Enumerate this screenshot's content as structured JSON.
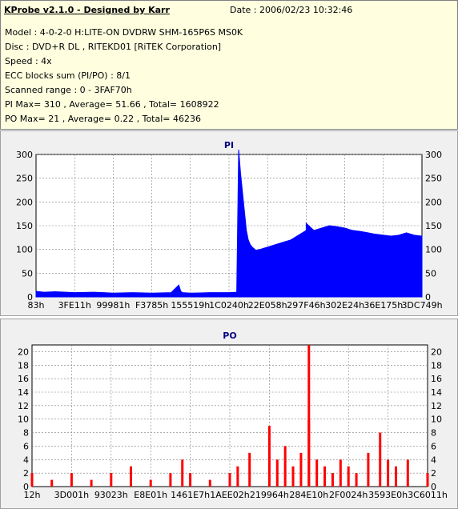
{
  "info": {
    "app_title": "KProbe v2.1.0 - Designed by Karr",
    "date": "Date : 2006/02/23 10:32:46",
    "lines": [
      "Model : 4-0-2-0 H:LITE-ON DVDRW SHM-165P6S MS0K",
      "Disc : DVD+R DL , RITEKD01 [RiTEK Corporation]",
      "Speed : 4x",
      "ECC blocks sum (PI/PO) : 8/1",
      "Scanned range : 0 - 3FAF70h",
      "PI Max= 310 , Average= 51.66 , Total= 1608922",
      "PO Max= 21 , Average= 0.22 , Total= 46236"
    ]
  },
  "colors": {
    "pi_fill": "#0000ff",
    "po_fill": "#ff0000",
    "plot_bg": "#ffffff",
    "grid": "#7f7f7f",
    "title": "#000080"
  },
  "chart_data": [
    {
      "type": "area",
      "title": "PI",
      "ylim": [
        0,
        300
      ],
      "yticks": [
        0,
        50,
        100,
        150,
        200,
        250,
        300
      ],
      "xtick_labels": [
        "83h",
        "3FE11h",
        "99981h",
        "F3785h",
        "155519h",
        "1C0240h",
        "22E058h",
        "297F46h",
        "302E24h",
        "36E175h",
        "3DC749h"
      ],
      "grid": true,
      "series": [
        {
          "x": [
            0.0,
            0.02,
            0.05,
            0.1,
            0.15,
            0.2,
            0.25,
            0.3,
            0.35,
            0.37,
            0.375,
            0.38,
            0.4,
            0.45,
            0.5,
            0.52,
            0.525,
            0.53,
            0.535,
            0.54,
            0.545,
            0.55,
            0.555,
            0.56,
            0.57,
            0.58,
            0.6,
            0.62,
            0.64,
            0.66,
            0.68,
            0.7,
            0.7,
            0.72,
            0.74,
            0.76,
            0.78,
            0.8,
            0.82,
            0.84,
            0.86,
            0.88,
            0.9,
            0.92,
            0.94,
            0.96,
            0.98,
            1.0
          ],
          "values": [
            12,
            10,
            11,
            9,
            10,
            8,
            9,
            8,
            9,
            25,
            12,
            9,
            8,
            9,
            9,
            10,
            310,
            260,
            220,
            180,
            140,
            120,
            110,
            105,
            98,
            100,
            105,
            110,
            115,
            120,
            130,
            140,
            155,
            140,
            145,
            150,
            148,
            145,
            140,
            138,
            135,
            132,
            130,
            128,
            130,
            135,
            130,
            128
          ]
        }
      ]
    },
    {
      "type": "bar",
      "title": "PO",
      "ylim": [
        0,
        21
      ],
      "yticks": [
        0,
        2,
        4,
        6,
        8,
        10,
        12,
        14,
        16,
        18,
        20
      ],
      "xtick_labels": [
        "12h",
        "3D001h",
        "93023h",
        "E8E01h",
        "1461E7h",
        "1AEE02h",
        "219964h",
        "284E10h",
        "2F0024h",
        "3593E0h",
        "3C6011h"
      ],
      "grid": true,
      "series": [
        {
          "x": [
            0.0,
            0.05,
            0.1,
            0.15,
            0.2,
            0.25,
            0.3,
            0.35,
            0.38,
            0.4,
            0.45,
            0.5,
            0.52,
            0.55,
            0.6,
            0.62,
            0.64,
            0.66,
            0.68,
            0.7,
            0.7,
            0.72,
            0.74,
            0.76,
            0.78,
            0.8,
            0.82,
            0.85,
            0.88,
            0.9,
            0.92,
            0.95,
            1.0
          ],
          "values": [
            2,
            1,
            2,
            1,
            2,
            3,
            1,
            2,
            4,
            2,
            1,
            2,
            3,
            5,
            9,
            4,
            6,
            3,
            5,
            21,
            10,
            4,
            3,
            2,
            4,
            3,
            2,
            5,
            8,
            4,
            3,
            4,
            2
          ]
        }
      ]
    }
  ]
}
